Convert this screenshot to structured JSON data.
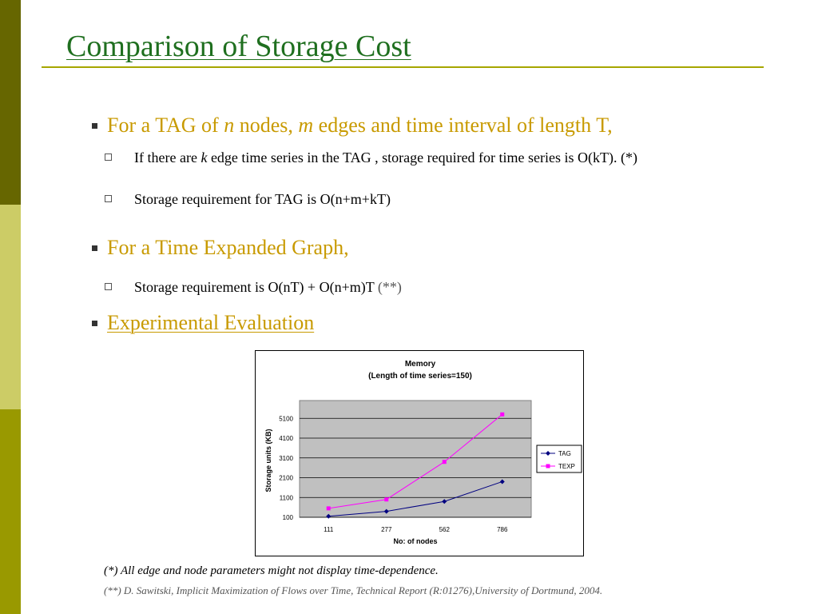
{
  "slide": {
    "title": "Comparison of Storage Cost",
    "sidebar_colors": [
      "#666600",
      "#cccc66",
      "#999900"
    ],
    "title_color": "#1f6f1f",
    "accent_color": "#c89a00"
  },
  "bullets": {
    "tag": {
      "pre": "For a TAG of ",
      "n": "n",
      "mid1": " nodes, ",
      "m": "m",
      "post": " edges and time interval of length T,",
      "sub1": {
        "pre": "If there are ",
        "k": "k",
        "post": " edge time series in the TAG , storage required for time series is O(kT). (*)"
      },
      "sub2": "Storage requirement for TAG is O(n+m+kT)"
    },
    "texp": {
      "text": "For a Time Expanded Graph,",
      "sub1": {
        "text": "Storage requirement is O(nT) + O(n+m)T ",
        "ref": "(**)"
      }
    },
    "experimental": "Experimental Evaluation"
  },
  "notes": {
    "n1": "(*)  All edge and node parameters might not display time-dependence.",
    "n2": "(**)  D. Sawitski, Implicit Maximization of Flows over Time, Technical Report (R:01276),University of Dortmund, 2004."
  },
  "chart_data": {
    "type": "line",
    "title": "Memory",
    "subtitle": "(Length of time series=150)",
    "xlabel": "No: of nodes",
    "ylabel": "Storage units (KB)",
    "categories": [
      "111",
      "277",
      "562",
      "786"
    ],
    "yticks": [
      100,
      1100,
      2100,
      3100,
      4100,
      5100
    ],
    "ylim": [
      100,
      6000
    ],
    "grid": true,
    "plot_background": "#c0c0c0",
    "legend_position": "right",
    "series": [
      {
        "name": "TAG",
        "color": "#000080",
        "marker": "diamond",
        "values": [
          150,
          400,
          900,
          1900
        ]
      },
      {
        "name": "TEXP",
        "color": "#ff00ff",
        "marker": "square",
        "values": [
          550,
          1000,
          2900,
          5300
        ]
      }
    ]
  }
}
